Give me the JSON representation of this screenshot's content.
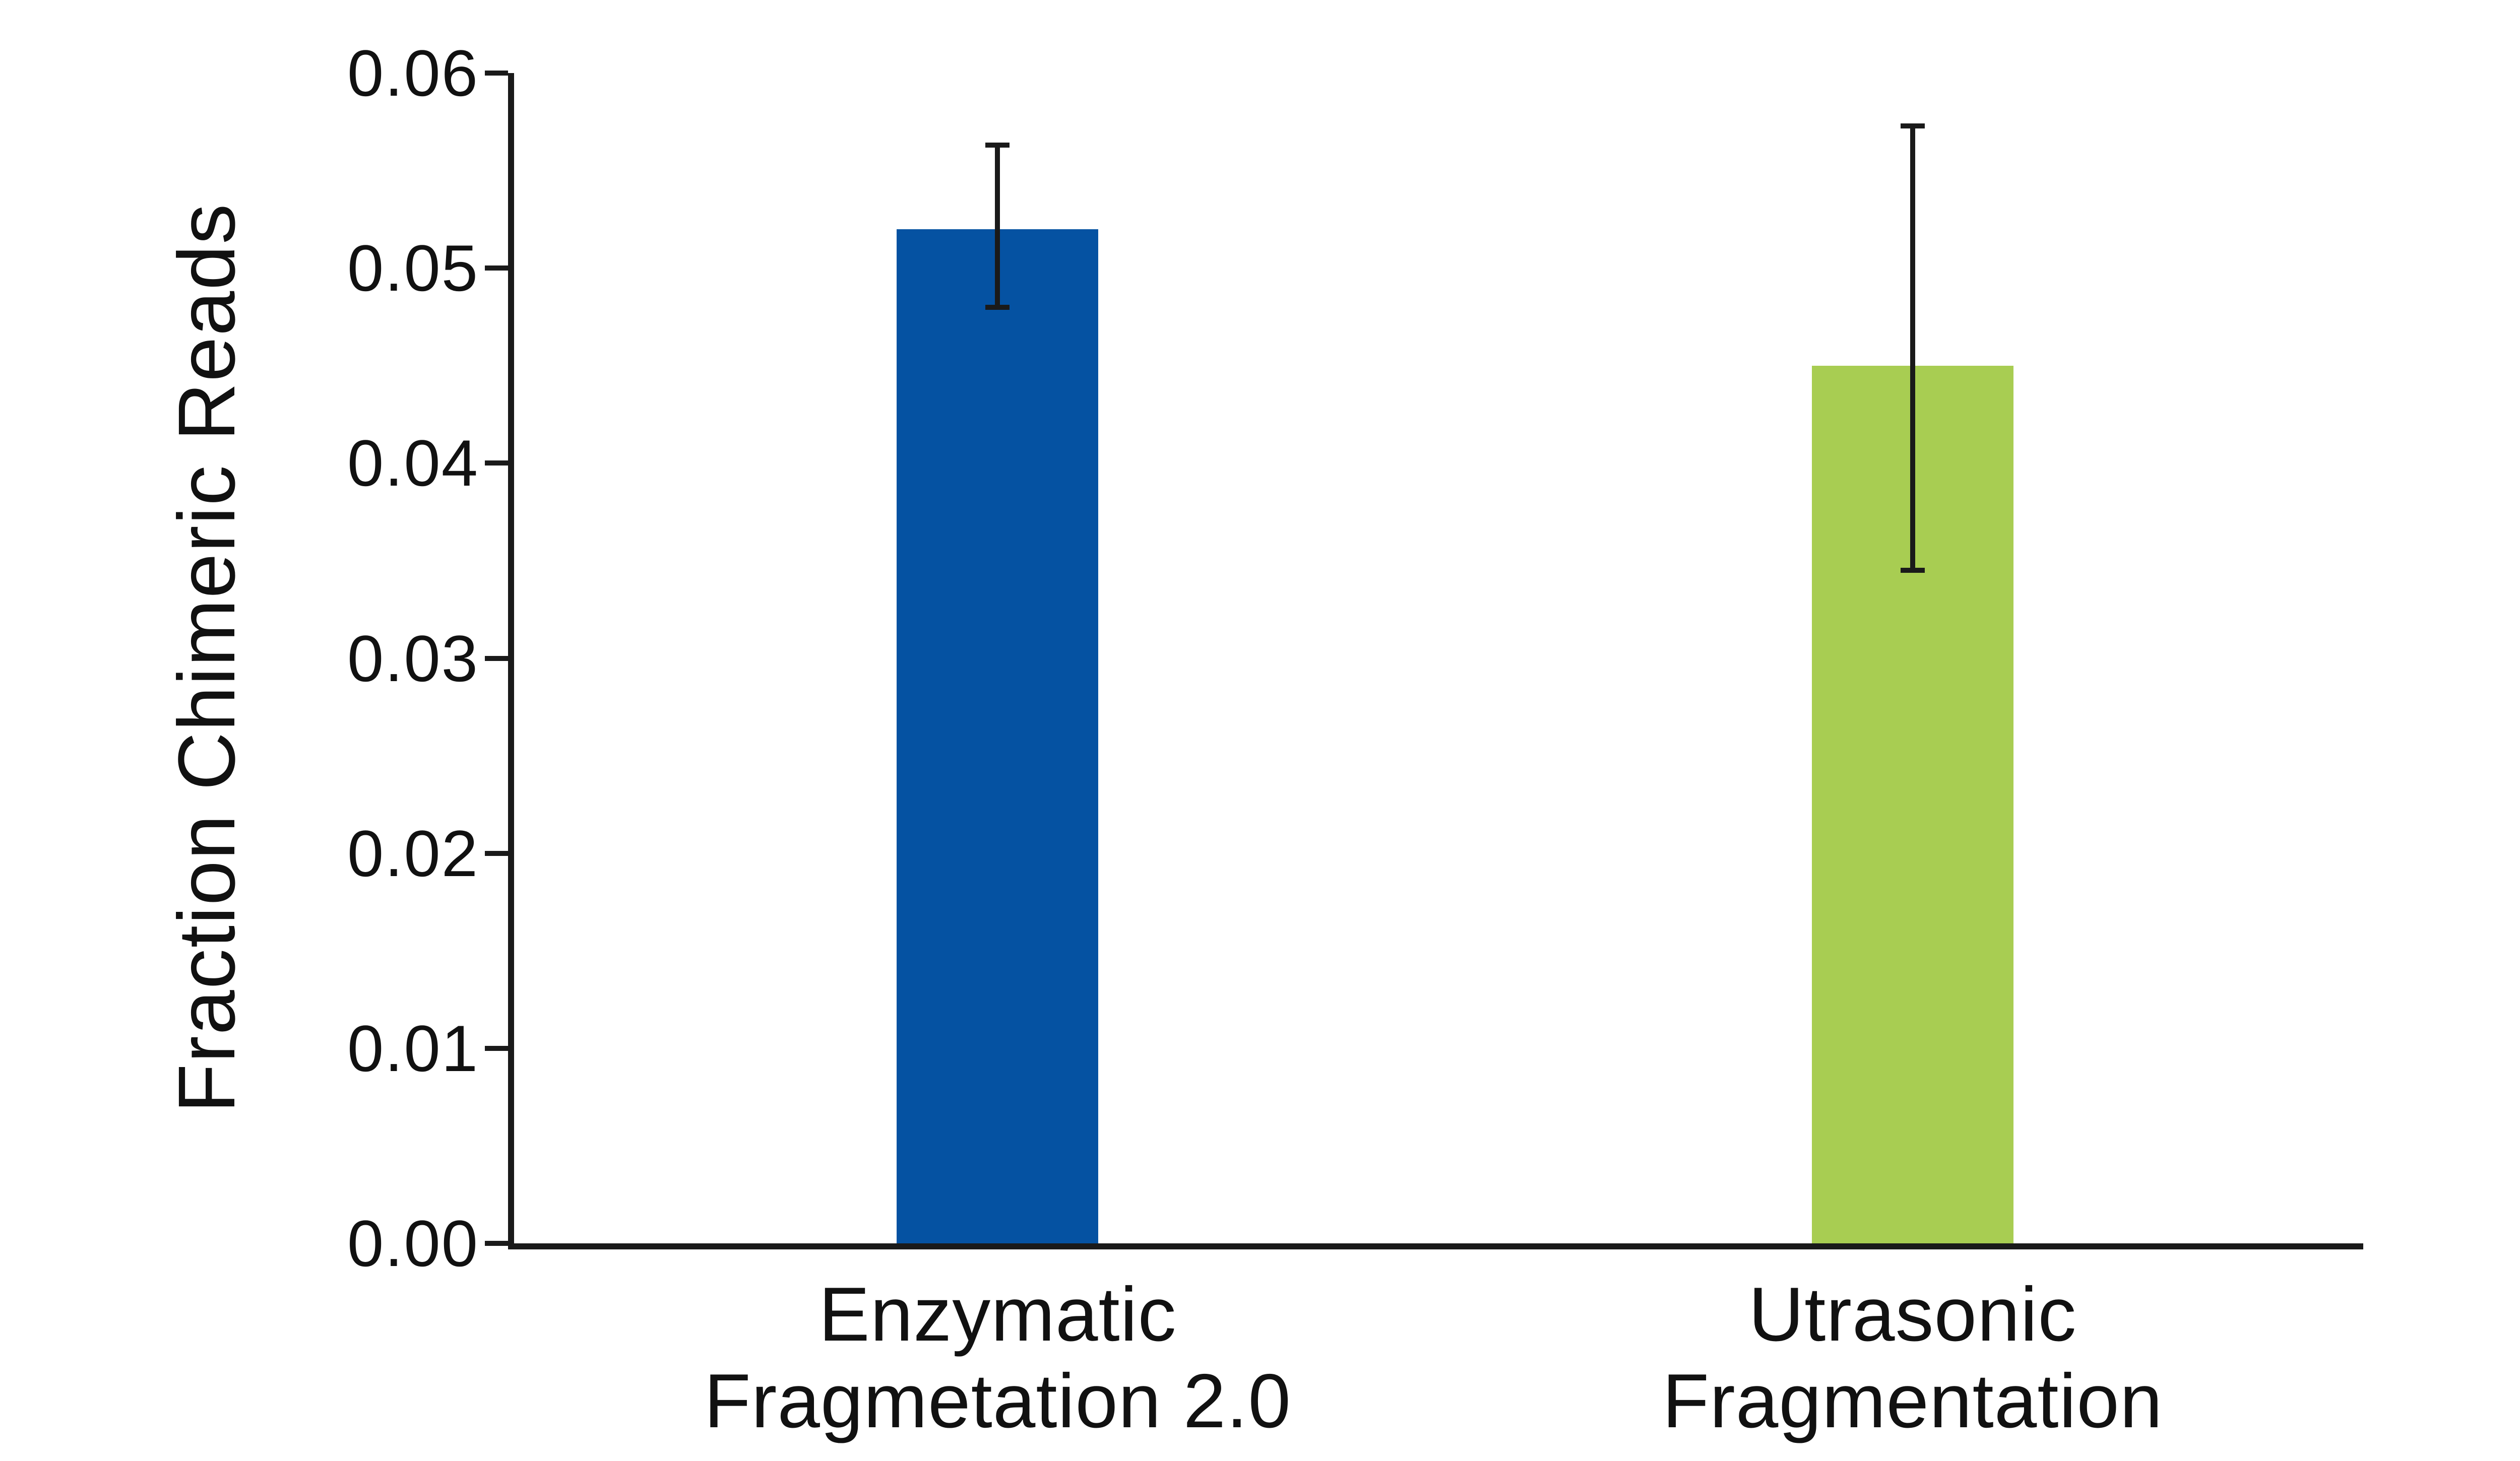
{
  "figure": {
    "background_color": "#ffffff",
    "axis_color": "#1a1a1a",
    "text_color": "#111111"
  },
  "chart_data": {
    "type": "bar",
    "title": "",
    "xlabel": "",
    "ylabel": "Fraction Chimeric Reads",
    "ylim": [
      0,
      0.06
    ],
    "ytick_step": 0.01,
    "ytick_labels": [
      "0.00",
      "0.01",
      "0.02",
      "0.03",
      "0.04",
      "0.05",
      "0.06"
    ],
    "grid": false,
    "legend": null,
    "categories": [
      [
        "Enzymatic",
        "Fragmetation 2.0"
      ],
      [
        "Utrasonic",
        "Fragmentation"
      ]
    ],
    "series": [
      {
        "name": "Fraction Chimeric Reads",
        "values": [
          0.052,
          0.045
        ],
        "error_upper_abs": [
          0.0563,
          0.0573
        ],
        "error_lower_abs": [
          0.048,
          0.0345
        ]
      }
    ],
    "bar_colors": [
      "#0552a2",
      "#a8cd52"
    ]
  }
}
